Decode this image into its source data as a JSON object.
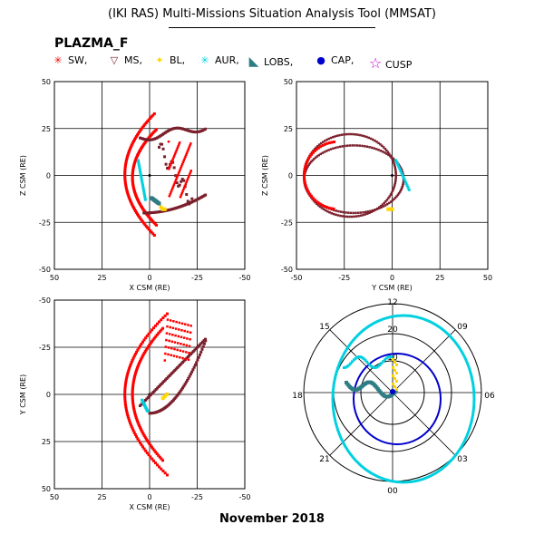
{
  "title": "(IKI RAS) Multi-Missions Situation Analysis Tool (MMSAT)",
  "subtitle": "PLAZMA_F",
  "footer": "November 2018",
  "legend": [
    {
      "label": "SW,",
      "color": "#ff0000",
      "icon": "asterisk-icon"
    },
    {
      "label": "MS,",
      "color": "#7a1f2b",
      "icon": "triangle-down-icon"
    },
    {
      "label": "BL,",
      "color": "#ffd700",
      "icon": "diamond-icon"
    },
    {
      "label": "AUR,",
      "color": "#00d0e0",
      "icon": "asterisk-icon"
    },
    {
      "label": "LOBS,",
      "color": "#2e7d85",
      "icon": "lobs-triangle-icon"
    },
    {
      "label": "CAP,",
      "color": "#0000cc",
      "icon": "dot-icon"
    },
    {
      "label": "CUSP",
      "color": "#cc00cc",
      "icon": "star-icon"
    }
  ],
  "chart_data": [
    {
      "type": "scatter",
      "panel": "top-left",
      "xlabel": "X CSM (RE)",
      "ylabel": "Z CSM (RE)",
      "xlim": [
        50,
        -50
      ],
      "ylim": [
        -50,
        50
      ],
      "xticks": [
        "50",
        "25",
        "0",
        "-25",
        "-50"
      ],
      "yticks": [
        "50",
        "25",
        "0",
        "-25",
        "-50"
      ]
    },
    {
      "type": "scatter",
      "panel": "top-right",
      "xlabel": "Y CSM (RE)",
      "ylabel": "Z CSM (RE)",
      "xlim": [
        -50,
        50
      ],
      "ylim": [
        -50,
        50
      ],
      "xticks": [
        "-50",
        "-25",
        "0",
        "25",
        "50"
      ],
      "yticks": [
        "50",
        "25",
        "0",
        "-25",
        "-50"
      ]
    },
    {
      "type": "scatter",
      "panel": "bottom-left",
      "xlabel": "X CSM (RE)",
      "ylabel": "Y CSM (RE)",
      "xlim": [
        50,
        -50
      ],
      "ylim": [
        50,
        -50
      ],
      "xticks": [
        "50",
        "25",
        "0",
        "-25",
        "-50"
      ],
      "yticks": [
        "-50",
        "-25",
        "0",
        "25",
        "50"
      ]
    },
    {
      "type": "polar",
      "panel": "bottom-right",
      "hour_labels": [
        "12",
        "15",
        "18",
        "21",
        "00",
        "03",
        "06",
        "09"
      ],
      "ring_label": "20",
      "ring_label2": "10"
    }
  ]
}
